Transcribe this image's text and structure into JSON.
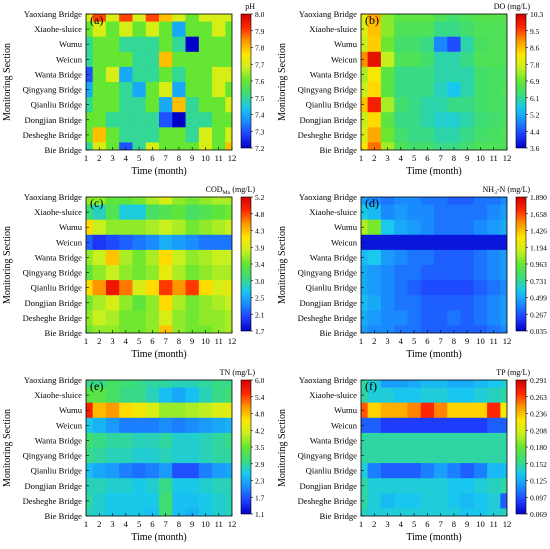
{
  "figure": {
    "background": "#ffffff",
    "colormap": [
      "#0000c8",
      "#1f3fff",
      "#1a8cff",
      "#18c8f0",
      "#3cdc78",
      "#64e632",
      "#c8f01e",
      "#ffe600",
      "#ff9600",
      "#ff2800",
      "#d20000"
    ]
  },
  "chart_data": [
    {
      "type": "heatmap",
      "panel": "(a)",
      "colorbar_title": "pH",
      "colorbar_ticks": [
        "8.0",
        "7.9",
        "7.8",
        "7.7",
        "7.6",
        "7.5",
        "7.4",
        "7.3",
        "7.2"
      ],
      "zlim": [
        7.2,
        8.0
      ],
      "xlabel": "Time (month)",
      "ylabel": "Monitoring Section",
      "x": [
        "1",
        "2",
        "3",
        "4",
        "5",
        "6",
        "7",
        "8",
        "9",
        "10",
        "11",
        "12"
      ],
      "y": [
        "Yaoxiang Bridge",
        "Xiaohe-sluice",
        "Wumu",
        "Weicun",
        "Wanta Bridge",
        "Qingyang Bridge",
        "Qianliu Bridge",
        "Dongjian Bridge",
        "Desheghe Bridge",
        "Bie Bridge"
      ],
      "values": [
        [
          7.7,
          7.9,
          7.7,
          7.9,
          7.7,
          7.9,
          7.8,
          7.7,
          7.6,
          7.7,
          7.7,
          7.7
        ],
        [
          7.6,
          7.7,
          7.6,
          7.7,
          7.6,
          7.7,
          7.6,
          7.4,
          7.6,
          7.6,
          7.7,
          7.6
        ],
        [
          7.5,
          7.6,
          7.6,
          7.5,
          7.5,
          7.5,
          7.6,
          7.5,
          7.2,
          7.6,
          7.6,
          7.6
        ],
        [
          7.5,
          7.6,
          7.6,
          7.6,
          7.5,
          7.5,
          7.8,
          7.6,
          7.6,
          7.6,
          7.6,
          7.6
        ],
        [
          7.3,
          7.6,
          7.7,
          7.4,
          7.5,
          7.5,
          7.6,
          7.5,
          7.6,
          7.6,
          7.7,
          7.7
        ],
        [
          7.4,
          7.6,
          7.6,
          7.5,
          7.4,
          7.6,
          7.7,
          7.4,
          7.6,
          7.6,
          7.7,
          7.6
        ],
        [
          7.5,
          7.6,
          7.6,
          7.5,
          7.5,
          7.6,
          7.4,
          7.8,
          7.5,
          7.6,
          7.6,
          7.7
        ],
        [
          7.6,
          7.6,
          7.5,
          7.5,
          7.5,
          7.5,
          7.3,
          7.2,
          7.5,
          7.5,
          7.6,
          7.6
        ],
        [
          7.6,
          7.8,
          7.6,
          7.5,
          7.5,
          7.5,
          7.6,
          7.6,
          7.5,
          7.7,
          7.6,
          7.7
        ],
        [
          7.5,
          7.7,
          7.6,
          7.3,
          7.5,
          7.7,
          7.6,
          7.6,
          7.6,
          7.7,
          7.6,
          7.8
        ]
      ]
    },
    {
      "type": "heatmap",
      "panel": "(b)",
      "colorbar_title": "DO (mg/L)",
      "colorbar_ticks": [
        "10.3",
        "9.5",
        "8.6",
        "7.8",
        "6.9",
        "6.1",
        "5.2",
        "4.4",
        "3.6"
      ],
      "zlim": [
        3.6,
        10.3
      ],
      "xlabel": "Time (month)",
      "ylabel": "Monitoring Section",
      "x": [
        "1",
        "2",
        "3",
        "4",
        "5",
        "6",
        "7",
        "8",
        "9",
        "10",
        "11",
        "12"
      ],
      "y": [
        "Yaoxiang Bridge",
        "Xiaohe-sluice",
        "Wumu",
        "Weicun",
        "Wanta Bridge",
        "Qingyang Bridge",
        "Qianliu Bridge",
        "Dongjian Bridge",
        "Desheghe Bridge",
        "Bie Bridge"
      ],
      "values": [
        [
          8.0,
          8.8,
          7.2,
          6.8,
          6.8,
          6.8,
          6.6,
          6.4,
          6.6,
          6.7,
          6.7,
          6.7
        ],
        [
          7.8,
          8.6,
          7.2,
          6.6,
          6.6,
          6.6,
          6.2,
          6.2,
          6.4,
          6.6,
          6.6,
          6.6
        ],
        [
          7.6,
          8.5,
          7.0,
          6.4,
          6.4,
          6.2,
          4.9,
          4.4,
          6.0,
          6.5,
          6.6,
          6.6
        ],
        [
          9.0,
          10.0,
          7.6,
          6.6,
          6.6,
          6.4,
          6.0,
          6.0,
          6.2,
          6.6,
          6.6,
          6.6
        ],
        [
          7.4,
          8.2,
          6.8,
          6.2,
          6.2,
          6.2,
          6.0,
          6.0,
          6.0,
          6.4,
          6.5,
          6.5
        ],
        [
          7.6,
          8.4,
          6.8,
          6.2,
          6.2,
          6.2,
          5.9,
          5.6,
          6.0,
          6.4,
          6.5,
          6.6
        ],
        [
          8.6,
          9.8,
          7.4,
          6.4,
          6.2,
          6.0,
          6.0,
          6.2,
          6.2,
          6.4,
          6.5,
          6.5
        ],
        [
          7.6,
          8.4,
          6.8,
          6.2,
          6.2,
          6.0,
          5.8,
          5.8,
          6.0,
          6.3,
          6.4,
          6.5
        ],
        [
          7.8,
          8.8,
          7.0,
          6.4,
          6.2,
          6.2,
          6.0,
          6.0,
          6.2,
          6.4,
          6.5,
          6.6
        ],
        [
          8.2,
          9.2,
          7.4,
          6.6,
          6.4,
          6.4,
          6.2,
          6.2,
          6.4,
          6.6,
          6.6,
          6.6
        ]
      ]
    },
    {
      "type": "heatmap",
      "panel": "(c)",
      "colorbar_title": "COD",
      "colorbar_title_sub": "Mn",
      "colorbar_title_unit": " (mg/L)",
      "colorbar_ticks": [
        "5.2",
        "4.8",
        "4.3",
        "3.9",
        "3.4",
        "3.0",
        "2.5",
        "2.1",
        "1.7"
      ],
      "zlim": [
        1.7,
        5.2
      ],
      "xlabel": "Time (month)",
      "ylabel": "Monitoring Section",
      "x": [
        "1",
        "2",
        "3",
        "4",
        "5",
        "6",
        "7",
        "8",
        "9",
        "10",
        "11",
        "12"
      ],
      "y": [
        "Yaoxiang Bridge",
        "Xiaohe-sluice",
        "Wumu",
        "Weicun",
        "Wanta Bridge",
        "Qingyang Bridge",
        "Qianliu Bridge",
        "Dongjian Bridge",
        "Desheghe Bridge",
        "Bie Bridge"
      ],
      "values": [
        [
          3.6,
          3.6,
          3.4,
          3.4,
          3.5,
          3.7,
          3.9,
          3.6,
          3.5,
          3.6,
          3.7,
          3.7
        ],
        [
          3.1,
          2.9,
          3.3,
          2.8,
          2.8,
          3.2,
          3.3,
          3.4,
          3.2,
          3.3,
          3.4,
          3.5
        ],
        [
          4.2,
          3.8,
          3.6,
          3.6,
          3.6,
          3.7,
          3.8,
          3.7,
          3.5,
          3.6,
          3.7,
          3.8
        ],
        [
          2.2,
          2.0,
          2.1,
          2.2,
          2.3,
          2.4,
          2.6,
          2.5,
          2.4,
          2.3,
          2.3,
          2.3
        ],
        [
          3.6,
          3.8,
          4.3,
          3.7,
          3.5,
          3.7,
          4.2,
          3.8,
          3.6,
          3.7,
          3.8,
          3.8
        ],
        [
          3.4,
          3.6,
          3.8,
          3.6,
          3.5,
          3.6,
          4.0,
          3.7,
          3.5,
          3.6,
          3.7,
          3.7
        ],
        [
          4.2,
          4.5,
          5.0,
          4.6,
          3.9,
          4.2,
          4.8,
          4.5,
          4.8,
          4.2,
          3.9,
          4.0
        ],
        [
          3.5,
          3.7,
          3.9,
          3.6,
          3.4,
          3.6,
          4.2,
          3.7,
          3.5,
          3.6,
          3.7,
          3.8
        ],
        [
          3.6,
          3.8,
          3.7,
          3.5,
          3.5,
          3.6,
          3.9,
          3.6,
          3.5,
          3.6,
          3.6,
          3.7
        ],
        [
          3.5,
          3.6,
          3.6,
          3.5,
          3.5,
          3.6,
          4.3,
          3.6,
          3.5,
          3.5,
          3.6,
          3.7
        ]
      ]
    },
    {
      "type": "heatmap",
      "panel": "(d)",
      "colorbar_title": "NH",
      "colorbar_title_sub": "3",
      "colorbar_title_unit": "-N (mg/L)",
      "colorbar_ticks": [
        "1.890",
        "1.658",
        "1.426",
        "1.194",
        "0.963",
        "0.731",
        "0.499",
        "0.267",
        "0.035"
      ],
      "zlim": [
        0.035,
        1.89
      ],
      "xlabel": "Time (month)",
      "ylabel": "Monitoring Section",
      "x": [
        "1",
        "2",
        "3",
        "4",
        "5",
        "6",
        "7",
        "8",
        "9",
        "10",
        "11",
        "12"
      ],
      "y": [
        "Yaoxiang Bridge",
        "Xiaohe-sluice",
        "Wumu",
        "Weicun",
        "Wanta Bridge",
        "Qingyang Bridge",
        "Qianliu Bridge",
        "Dongjian Bridge",
        "Desheghe Bridge",
        "Bie Bridge"
      ],
      "values": [
        [
          0.45,
          0.4,
          0.35,
          0.4,
          0.4,
          0.35,
          0.35,
          0.3,
          0.3,
          0.35,
          0.35,
          0.4
        ],
        [
          0.6,
          0.55,
          0.4,
          0.45,
          0.4,
          0.4,
          0.35,
          0.35,
          0.35,
          0.35,
          0.4,
          0.45
        ],
        [
          1.1,
          1.0,
          0.6,
          0.5,
          0.45,
          0.4,
          0.35,
          0.35,
          0.35,
          0.4,
          0.45,
          0.5
        ],
        [
          0.1,
          0.1,
          0.1,
          0.1,
          0.1,
          0.1,
          0.1,
          0.1,
          0.1,
          0.1,
          0.1,
          0.1
        ],
        [
          0.55,
          0.6,
          0.45,
          0.4,
          0.35,
          0.35,
          0.3,
          0.3,
          0.3,
          0.35,
          0.4,
          0.45
        ],
        [
          0.5,
          0.45,
          0.4,
          0.35,
          0.35,
          0.3,
          0.3,
          0.3,
          0.3,
          0.35,
          0.4,
          0.45
        ],
        [
          0.5,
          0.45,
          0.4,
          0.35,
          0.3,
          0.25,
          0.25,
          0.25,
          0.25,
          0.3,
          0.35,
          0.4
        ],
        [
          0.55,
          0.5,
          0.4,
          0.35,
          0.35,
          0.3,
          0.3,
          0.3,
          0.3,
          0.35,
          0.4,
          0.45
        ],
        [
          0.5,
          0.45,
          0.4,
          0.4,
          0.35,
          0.3,
          0.3,
          0.35,
          0.3,
          0.35,
          0.4,
          0.45
        ],
        [
          0.45,
          0.4,
          0.4,
          0.35,
          0.35,
          0.3,
          0.3,
          0.3,
          0.3,
          0.3,
          0.35,
          0.4
        ]
      ]
    },
    {
      "type": "heatmap",
      "panel": "(e)",
      "colorbar_title": "TN (mg/L)",
      "colorbar_ticks": [
        "6.0",
        "5.4",
        "4.8",
        "4.2",
        "3.5",
        "2.9",
        "2.3",
        "1.7",
        "1.1"
      ],
      "zlim": [
        1.1,
        6.0
      ],
      "xlabel": "Time (month)",
      "ylabel": "Monitoring Section",
      "x": [
        "1",
        "2",
        "3",
        "4",
        "5",
        "6",
        "7",
        "8",
        "9",
        "10",
        "11",
        "12"
      ],
      "y": [
        "Yaoxiang Bridge",
        "Xiaohe-sluice",
        "Wumu",
        "Weicun",
        "Wanta Bridge",
        "Qingyang Bridge",
        "Qianliu Bridge",
        "Dongjian Bridge",
        "Desheghe Bridge",
        "Bie Bridge"
      ],
      "values": [
        [
          3.0,
          3.0,
          3.2,
          3.1,
          3.0,
          2.9,
          2.9,
          2.8,
          2.8,
          2.9,
          3.0,
          3.0
        ],
        [
          3.4,
          3.4,
          3.2,
          3.0,
          3.0,
          2.8,
          2.5,
          2.3,
          2.5,
          2.8,
          3.0,
          3.1
        ],
        [
          5.6,
          4.8,
          5.0,
          4.6,
          4.4,
          4.2,
          3.8,
          3.8,
          3.9,
          4.0,
          4.2,
          4.3
        ],
        [
          2.6,
          2.4,
          2.2,
          2.0,
          2.0,
          2.0,
          2.1,
          2.0,
          2.1,
          2.2,
          2.3,
          2.4
        ],
        [
          3.1,
          3.0,
          2.9,
          2.9,
          2.8,
          2.8,
          2.9,
          2.7,
          2.7,
          2.8,
          2.9,
          3.0
        ],
        [
          3.0,
          2.9,
          2.8,
          2.8,
          2.7,
          2.7,
          2.8,
          2.7,
          2.7,
          2.8,
          2.9,
          2.9
        ],
        [
          2.5,
          2.3,
          2.2,
          2.0,
          1.9,
          2.0,
          2.2,
          1.7,
          1.7,
          2.0,
          2.2,
          2.3
        ],
        [
          2.8,
          2.8,
          2.7,
          2.7,
          2.6,
          2.7,
          3.0,
          2.6,
          2.6,
          2.7,
          2.8,
          2.8
        ],
        [
          2.9,
          2.7,
          2.6,
          2.6,
          2.6,
          2.6,
          3.1,
          2.5,
          2.5,
          2.6,
          2.7,
          2.8
        ],
        [
          2.8,
          2.7,
          2.6,
          2.6,
          2.6,
          2.5,
          3.1,
          2.5,
          2.4,
          2.6,
          2.7,
          2.8
        ]
      ]
    },
    {
      "type": "heatmap",
      "panel": "(f)",
      "colorbar_title": "TP (mg/L)",
      "colorbar_ticks": [
        "0.291",
        "0.263",
        "0.236",
        "0.208",
        "0.180",
        "0.152",
        "0.125",
        "0.097",
        "0.069"
      ],
      "zlim": [
        0.069,
        0.291
      ],
      "xlabel": "Time (month)",
      "ylabel": "Monitoring Section",
      "x": [
        "1",
        "2",
        "3",
        "4",
        "5",
        "6",
        "7",
        "8",
        "9",
        "10",
        "11",
        "12"
      ],
      "y": [
        "Yaoxiang Bridge",
        "Xiaohe-sluice",
        "Wumu",
        "Weicun",
        "Wanta Bridge",
        "Qingyang Bridge",
        "Qianliu Bridge",
        "Dongjian Bridge",
        "Desheghe Bridge",
        "Bie Bridge"
      ],
      "values": [
        [
          0.15,
          0.14,
          0.12,
          0.12,
          0.125,
          0.13,
          0.13,
          0.125,
          0.125,
          0.13,
          0.135,
          0.14
        ],
        [
          0.15,
          0.14,
          0.14,
          0.135,
          0.135,
          0.14,
          0.14,
          0.135,
          0.135,
          0.14,
          0.145,
          0.15
        ],
        [
          0.26,
          0.23,
          0.24,
          0.24,
          0.25,
          0.27,
          0.25,
          0.23,
          0.23,
          0.23,
          0.27,
          0.22
        ],
        [
          0.1,
          0.1,
          0.09,
          0.09,
          0.09,
          0.09,
          0.09,
          0.09,
          0.09,
          0.09,
          0.1,
          0.1
        ],
        [
          0.15,
          0.15,
          0.15,
          0.15,
          0.15,
          0.15,
          0.15,
          0.15,
          0.15,
          0.15,
          0.15,
          0.15
        ],
        [
          0.15,
          0.15,
          0.15,
          0.15,
          0.15,
          0.15,
          0.15,
          0.15,
          0.15,
          0.15,
          0.15,
          0.15
        ],
        [
          0.14,
          0.11,
          0.1,
          0.1,
          0.1,
          0.11,
          0.12,
          0.11,
          0.1,
          0.11,
          0.13,
          0.13
        ],
        [
          0.15,
          0.14,
          0.14,
          0.14,
          0.14,
          0.14,
          0.14,
          0.135,
          0.135,
          0.14,
          0.145,
          0.15
        ],
        [
          0.15,
          0.14,
          0.13,
          0.135,
          0.135,
          0.14,
          0.14,
          0.135,
          0.13,
          0.135,
          0.14,
          0.1
        ],
        [
          0.145,
          0.14,
          0.14,
          0.14,
          0.14,
          0.14,
          0.14,
          0.14,
          0.135,
          0.135,
          0.14,
          0.145
        ]
      ]
    }
  ]
}
